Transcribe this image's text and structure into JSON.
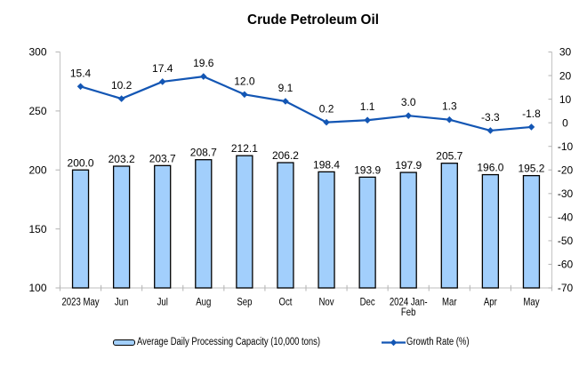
{
  "chart": {
    "title": "Crude Petroleum Oil",
    "legend": {
      "bar_label": "Average Daily Processing Capacity (10,000 tons)",
      "line_label": "Growth Rate (%)"
    }
  },
  "chart_data": {
    "type": "bar",
    "title": "Crude Petroleum Oil",
    "categories": [
      "2023 May",
      "Jun",
      "Jul",
      "Aug",
      "Sep",
      "Oct",
      "Nov",
      "Dec",
      "2024 Jan-\nFeb",
      "Mar",
      "Apr",
      "May"
    ],
    "series": [
      {
        "name": "Average Daily Processing Capacity (10,000 tons)",
        "type": "bar",
        "axis": "left",
        "values": [
          200.0,
          203.2,
          203.7,
          208.7,
          212.1,
          206.2,
          198.4,
          193.9,
          197.9,
          205.7,
          196.0,
          195.2
        ]
      },
      {
        "name": "Growth Rate (%)",
        "type": "line",
        "axis": "right",
        "values": [
          15.4,
          10.2,
          17.4,
          19.6,
          12.0,
          9.1,
          0.2,
          1.1,
          3.0,
          1.3,
          -3.3,
          -1.8
        ]
      }
    ],
    "left_axis": {
      "min": 100,
      "max": 300,
      "step": 50
    },
    "right_axis": {
      "min": -70,
      "max": 30,
      "step": 10
    },
    "grid": false,
    "legend_position": "bottom",
    "label_decimals": 1,
    "colors": {
      "bar_fill": "#A2CFFC",
      "bar_stroke": "#000000",
      "line": "#1356B4",
      "axis": "#C9C9C9",
      "tick": "#B9B9B9",
      "text": "#000000",
      "background": "#FFFFFF"
    }
  }
}
